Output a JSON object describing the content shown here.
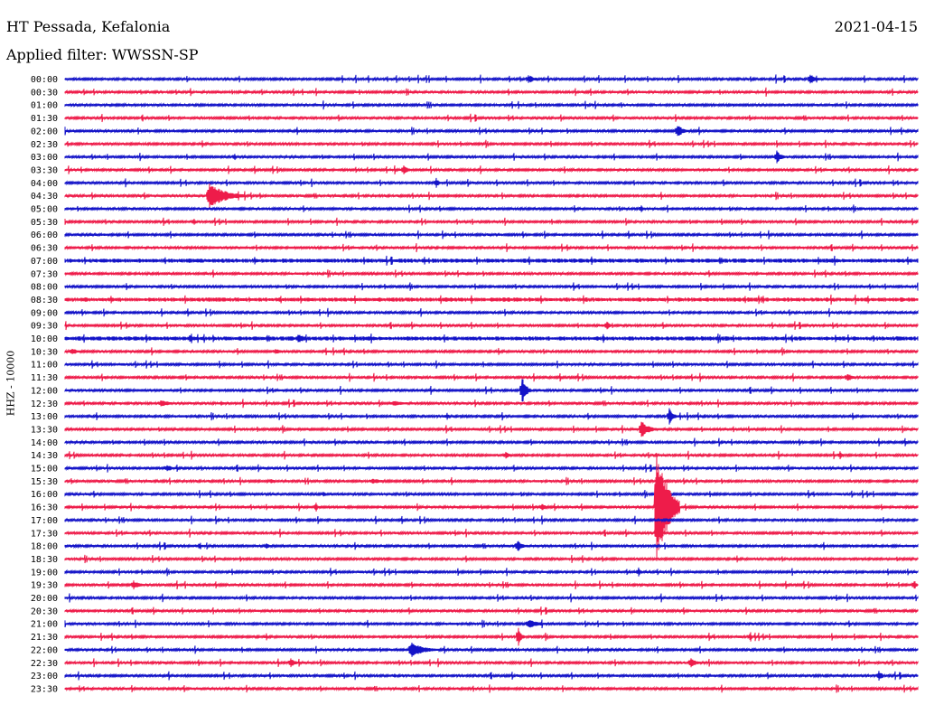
{
  "header": {
    "station": "HT Pessada, Kefalonia",
    "filter": "Applied filter: WWSSN-SP",
    "date": "2021-04-15"
  },
  "ylabel": "HHZ - 10000",
  "colors": {
    "trace_a": "#1414c8",
    "trace_b": "#ee1c4a"
  },
  "times": [
    "00:00",
    "00:30",
    "01:00",
    "01:30",
    "02:00",
    "02:30",
    "03:00",
    "03:30",
    "04:00",
    "04:30",
    "05:00",
    "05:30",
    "06:00",
    "06:30",
    "07:00",
    "07:30",
    "08:00",
    "08:30",
    "09:00",
    "09:30",
    "10:00",
    "10:30",
    "11:00",
    "11:30",
    "12:00",
    "12:30",
    "13:00",
    "13:30",
    "14:00",
    "14:30",
    "15:00",
    "15:30",
    "16:00",
    "16:30",
    "17:00",
    "17:30",
    "18:00",
    "18:30",
    "19:00",
    "19:30",
    "20:00",
    "20:30",
    "21:00",
    "21:30",
    "22:00",
    "22:30",
    "23:00",
    "23:30"
  ]
}
